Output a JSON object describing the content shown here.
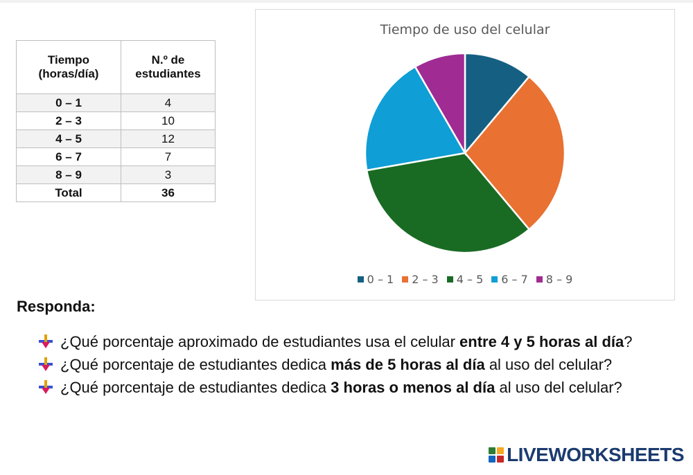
{
  "table": {
    "header_time": [
      "Tiempo",
      "(horas/día)"
    ],
    "header_count": [
      "N.º de",
      "estudiantes"
    ],
    "rows": [
      {
        "range": "0 – 1",
        "count": "4"
      },
      {
        "range": "2 – 3",
        "count": "10"
      },
      {
        "range": "4 – 5",
        "count": "12"
      },
      {
        "range": "6 – 7",
        "count": "7"
      },
      {
        "range": "8 – 9",
        "count": "3"
      }
    ],
    "total_label": "Total",
    "total_value": "36"
  },
  "chart_data": {
    "type": "pie",
    "title": "Tiempo de uso del celular",
    "categories": [
      "0 – 1",
      "2 – 3",
      "4 – 5",
      "6 – 7",
      "8 – 9"
    ],
    "values": [
      4,
      10,
      12,
      7,
      3
    ],
    "colors": [
      "#156082",
      "#e97132",
      "#196b24",
      "#0f9ed5",
      "#a02b93"
    ],
    "legend": "bottom"
  },
  "section": {
    "heading": "Responda:",
    "questions": [
      {
        "before": "¿Qué porcentaje aproximado de estudiantes usa el celular ",
        "bold": "entre 4 y 5 horas al día",
        "after": "?"
      },
      {
        "before": "¿Qué porcentaje de estudiantes dedica ",
        "bold": "más de 5 horas al día",
        "after": " al uso del celular?"
      },
      {
        "before": "¿Qué porcentaje de estudiantes dedica ",
        "bold": "3 horas o menos al día",
        "after": " al uso del celular?"
      }
    ]
  },
  "logo": {
    "text": "LIVEWORKSHEETS",
    "icon": "liveworksheets-logo-icon"
  },
  "bullet_icon": "arrow-bullet-icon"
}
